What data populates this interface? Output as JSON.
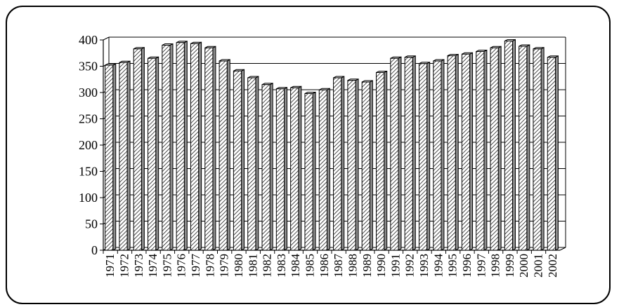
{
  "chart_data": {
    "type": "bar",
    "title": "",
    "xlabel": "",
    "ylabel": "",
    "ylim": [
      0,
      400
    ],
    "y_ticks": [
      0,
      50,
      100,
      150,
      200,
      250,
      300,
      350,
      400
    ],
    "grid": true,
    "legend": "none",
    "bar_pattern": "diagonal-hatch",
    "categories": [
      "1971",
      "1972",
      "1973",
      "1974",
      "1975",
      "1976",
      "1977",
      "1978",
      "1979",
      "1980",
      "1981",
      "1982",
      "1983",
      "1984",
      "1985",
      "1986",
      "1987",
      "1988",
      "1989",
      "1990",
      "1991",
      "1992",
      "1993",
      "1994",
      "1995",
      "1996",
      "1997",
      "1998",
      "1999",
      "2000",
      "2001",
      "2002"
    ],
    "values": [
      352,
      357,
      383,
      365,
      390,
      395,
      393,
      385,
      360,
      341,
      328,
      315,
      307,
      309,
      298,
      305,
      328,
      323,
      320,
      338,
      365,
      367,
      355,
      360,
      370,
      373,
      378,
      385,
      398,
      388,
      383,
      367
    ]
  },
  "colors": {
    "bar_fill": "#ffffff",
    "bar_stroke": "#000000",
    "bar_top": "#d9d9d9",
    "bar_side": "#8c8c8c",
    "grid": "#000000"
  }
}
